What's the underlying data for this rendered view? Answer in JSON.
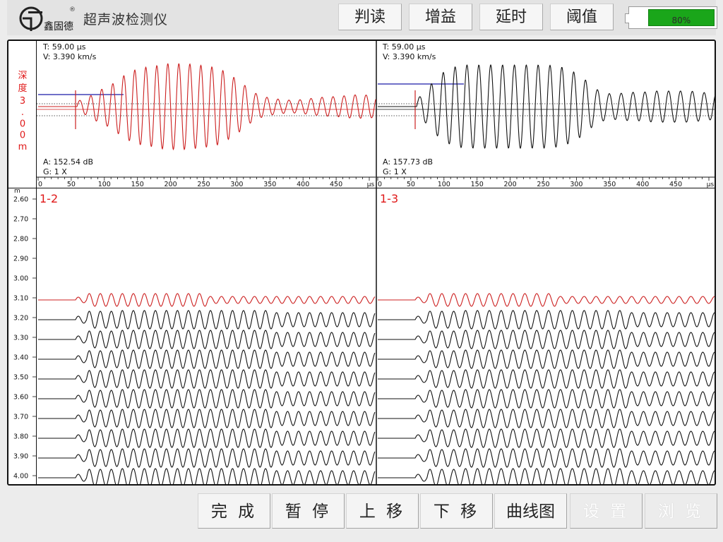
{
  "header": {
    "app_title": "超声波检测仪",
    "logo_text": "鑫固德",
    "logo_registered": "®",
    "tabs": [
      {
        "id": "interpret",
        "label": "判读"
      },
      {
        "id": "gain",
        "label": "增益"
      },
      {
        "id": "delay",
        "label": "延时"
      },
      {
        "id": "threshold",
        "label": "阈值"
      }
    ],
    "battery": {
      "level": 80,
      "label": "80%",
      "color": "#1aa61a"
    }
  },
  "depth_indicator": {
    "label": "深度",
    "value": "3.00",
    "unit": "m",
    "color": "#e01818"
  },
  "waveform_panels": [
    {
      "id": "1-2",
      "T": "T:  59.00 μs",
      "V": "V:  3.390 km/s",
      "A": "A:  152.54 dB",
      "G": "G:  1 X",
      "wave_color": "#cc1f1f"
    },
    {
      "id": "1-3",
      "T": "T:  59.00 μs",
      "V": "V:  3.390 km/s",
      "A": "A:  157.73 dB",
      "G": "G:  1 X",
      "wave_color": "#111111"
    }
  ],
  "time_axis": {
    "ticks": [
      0,
      50,
      100,
      150,
      200,
      250,
      300,
      350,
      400,
      450
    ],
    "unit": "μs"
  },
  "profile": {
    "depth_unit": "m",
    "depth_ticks": [
      "2.60",
      "2.70",
      "2.80",
      "2.90",
      "3.00",
      "3.10",
      "3.20",
      "3.30",
      "3.40",
      "3.50",
      "3.60",
      "3.70",
      "3.80",
      "3.90",
      "4.00"
    ],
    "traced_depths": [
      "3.10",
      "3.20",
      "3.30",
      "3.40",
      "3.50",
      "3.60",
      "3.70",
      "3.80",
      "3.90",
      "4.00"
    ],
    "current_depth": "3.10",
    "highlight_color": "#cc1f1f",
    "labels": [
      "1-2",
      "1-3"
    ]
  },
  "footer": {
    "buttons": [
      {
        "id": "finish",
        "label": "完 成",
        "enabled": true
      },
      {
        "id": "pause",
        "label": "暂 停",
        "enabled": true
      },
      {
        "id": "move-up",
        "label": "上 移",
        "enabled": true
      },
      {
        "id": "move-down",
        "label": "下 移",
        "enabled": true
      },
      {
        "id": "curve",
        "label": "曲线图",
        "enabled": true
      },
      {
        "id": "settings",
        "label": "设 置",
        "enabled": false
      },
      {
        "id": "browse",
        "label": "浏 览",
        "enabled": false
      }
    ]
  }
}
